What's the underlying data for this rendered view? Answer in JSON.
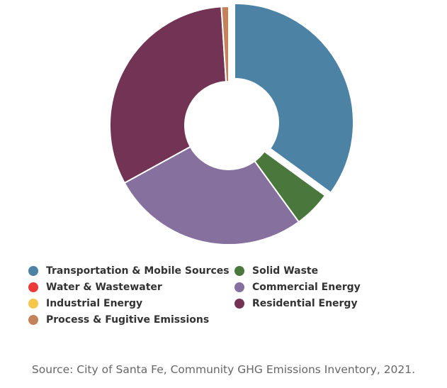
{
  "chart_data": {
    "type": "pie",
    "variant": "donut",
    "unit": "%",
    "series": [
      {
        "name": "Transportation & Mobile Sources",
        "value": 35,
        "color": "#4c82a3"
      },
      {
        "name": "Solid Waste",
        "value": 5,
        "color": "#4a773c"
      },
      {
        "name": "Water & Wastewater",
        "value": 0,
        "color": "#ea3a3a"
      },
      {
        "name": "Commercial Energy",
        "value": 27,
        "color": "#85709e"
      },
      {
        "name": "Industrial Energy",
        "value": 0,
        "color": "#f5c84c"
      },
      {
        "name": "Residential Energy",
        "value": 32,
        "color": "#733355"
      },
      {
        "name": "Process & Fugitive Emissions",
        "value": 1,
        "color": "#c4825a"
      }
    ],
    "slice_order": [
      "Transportation & Mobile Sources",
      "Solid Waste",
      "Commercial Energy",
      "Residential Energy",
      "Process & Fugitive Emissions"
    ],
    "exploded_slice": "Transportation & Mobile Sources",
    "legend_position": "bottom"
  },
  "legend": [
    {
      "label": "Transportation & Mobile Sources",
      "color": "#4c82a3"
    },
    {
      "label": "Solid Waste",
      "color": "#4a773c"
    },
    {
      "label": "Water & Wastewater",
      "color": "#ea3a3a"
    },
    {
      "label": "Commercial Energy",
      "color": "#85709e"
    },
    {
      "label": "Industrial Energy",
      "color": "#f5c84c"
    },
    {
      "label": "Residential Energy",
      "color": "#733355"
    },
    {
      "label": "Process & Fugitive Emissions",
      "color": "#c4825a"
    }
  ],
  "source": "Source: City of Santa Fe, Community GHG Emissions Inventory, 2021."
}
